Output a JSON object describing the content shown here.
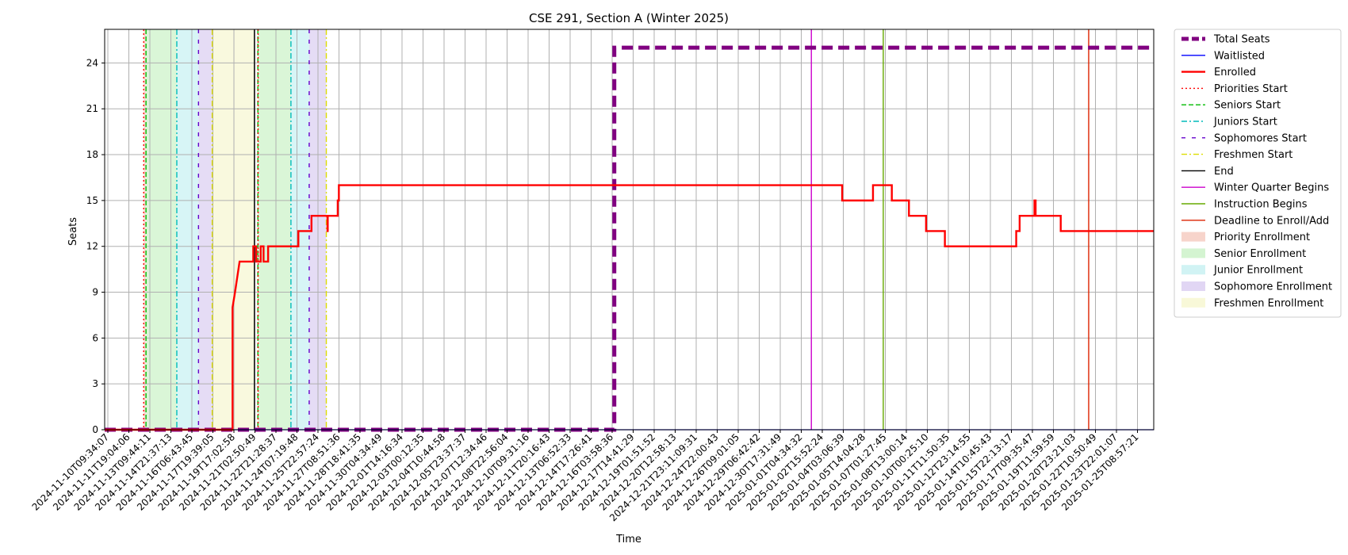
{
  "chart_data": {
    "type": "line",
    "title": "CSE 291, Section A (Winter 2025)",
    "xlabel": "Time",
    "ylabel": "Seats",
    "xlim": [
      "2024-11-10T09:34:07",
      "2025-01-25T23:59:59"
    ],
    "ylim": [
      0,
      26.2
    ],
    "grid": true,
    "legend_position": "outside-right-top",
    "y_ticks": [
      0,
      3,
      6,
      9,
      12,
      15,
      18,
      21,
      24
    ],
    "x_tick_labels": [
      "2024-11-10T09:34:07",
      "2024-11-11T19:04:06",
      "2024-11-13T09:44:11",
      "2024-11-14T21:37:13",
      "2024-11-16T06:43:45",
      "2024-11-17T19:39:05",
      "2024-11-19T17:02:58",
      "2024-11-21T02:50:49",
      "2024-11-22T21:28:37",
      "2024-11-24T07:19:48",
      "2024-11-25T22:57:24",
      "2024-11-27T08:51:36",
      "2024-11-28T18:41:35",
      "2024-11-30T04:34:49",
      "2024-12-01T14:16:34",
      "2024-12-03T00:12:35",
      "2024-12-04T10:44:58",
      "2024-12-05T23:37:37",
      "2024-12-07T12:34:46",
      "2024-12-08T22:56:04",
      "2024-12-10T09:31:16",
      "2024-12-11T20:16:43",
      "2024-12-13T06:52:33",
      "2024-12-14T17:26:41",
      "2024-12-16T03:58:36",
      "2024-12-17T14:41:29",
      "2024-12-19T01:51:52",
      "2024-12-20T12:58:13",
      "2024-12-21T23:11:09:31",
      "2024-12-24T22:00:43",
      "2024-12-26T09:01:05",
      "2024-12-29T06:42:42",
      "2024-12-30T17:31:49",
      "2025-01-01T04:34:32",
      "2025-01-02T15:52:24",
      "2025-01-04T03:06:39",
      "2025-01-05T14:04:28",
      "2025-01-07T01:27:45",
      "2025-01-08T13:00:14",
      "2025-01-10T00:25:10",
      "2025-01-11T11:50:35",
      "2025-01-12T23:14:55",
      "2025-01-14T10:45:43",
      "2025-01-15T22:13:17",
      "2025-01-17T09:35:47",
      "2025-01-19T11:59:59",
      "2025-01-20T23:21:03",
      "2025-01-22T10:50:49",
      "2025-01-23T22:01:07",
      "2025-01-25T08:57:21"
    ],
    "series": [
      {
        "name": "Total Seats",
        "color": "#800080",
        "style": "thick-dashed",
        "points": [
          [
            "2024-11-10T09:34:07",
            0
          ],
          [
            "2024-12-17T14:41:29",
            0
          ],
          [
            "2024-12-17T14:41:29",
            25
          ],
          [
            "2025-01-25T23:59:59",
            25
          ]
        ]
      },
      {
        "name": "Waitlisted",
        "color": "#0000ff",
        "style": "solid",
        "points": [
          [
            "2024-11-10T09:34:07",
            0
          ],
          [
            "2025-01-25T23:59:59",
            0
          ]
        ]
      },
      {
        "name": "Enrolled",
        "color": "#ff0000",
        "style": "thick-solid",
        "points": [
          [
            "2024-11-10T09:34:07",
            0
          ],
          [
            "2024-11-19T17:40:00",
            0
          ],
          [
            "2024-11-19T17:40:00",
            8
          ],
          [
            "2024-11-19T22:00:00",
            9
          ],
          [
            "2024-11-20T02:00:00",
            10
          ],
          [
            "2024-11-20T06:00:00",
            11
          ],
          [
            "2024-11-21T06:00:00",
            11
          ],
          [
            "2024-11-21T06:00:00",
            12
          ],
          [
            "2024-11-21T11:00:00",
            12
          ],
          [
            "2024-11-21T11:00:00",
            11
          ],
          [
            "2024-11-21T19:00:00",
            11
          ],
          [
            "2024-11-21T19:00:00",
            12
          ],
          [
            "2024-11-22T00:00:00",
            12
          ],
          [
            "2024-11-22T00:00:00",
            11
          ],
          [
            "2024-11-22T08:00:00",
            11
          ],
          [
            "2024-11-22T08:00:00",
            12
          ],
          [
            "2024-11-24T13:00:00",
            12
          ],
          [
            "2024-11-24T13:00:00",
            13
          ],
          [
            "2024-11-25T12:00:00",
            13
          ],
          [
            "2024-11-25T12:00:00",
            14
          ],
          [
            "2024-11-26T16:00:00",
            14
          ],
          [
            "2024-11-26T16:00:00",
            13
          ],
          [
            "2024-11-26T16:30:00",
            13
          ],
          [
            "2024-11-26T16:30:00",
            14
          ],
          [
            "2024-11-27T10:00:00",
            14
          ],
          [
            "2024-11-27T10:00:00",
            15
          ],
          [
            "2024-11-27T12:00:00",
            15
          ],
          [
            "2024-11-27T12:00:00",
            16
          ],
          [
            "2025-01-03T06:00:00",
            16
          ],
          [
            "2025-01-03T06:00:00",
            15
          ],
          [
            "2025-01-05T12:00:00",
            15
          ],
          [
            "2025-01-05T12:00:00",
            16
          ],
          [
            "2025-01-06T21:00:00",
            16
          ],
          [
            "2025-01-06T21:00:00",
            15
          ],
          [
            "2025-01-08T03:00:00",
            15
          ],
          [
            "2025-01-08T03:00:00",
            14
          ],
          [
            "2025-01-09T09:00:00",
            14
          ],
          [
            "2025-01-09T09:00:00",
            13
          ],
          [
            "2025-01-10T18:00:00",
            13
          ],
          [
            "2025-01-10T18:00:00",
            12
          ],
          [
            "2025-01-15T23:00:00",
            12
          ],
          [
            "2025-01-15T23:00:00",
            13
          ],
          [
            "2025-01-16T05:00:00",
            13
          ],
          [
            "2025-01-16T05:00:00",
            14
          ],
          [
            "2025-01-17T07:00:00",
            14
          ],
          [
            "2025-01-17T07:00:00",
            15
          ],
          [
            "2025-01-17T09:00:00",
            15
          ],
          [
            "2025-01-17T09:00:00",
            14
          ],
          [
            "2025-01-19T05:00:00",
            14
          ],
          [
            "2025-01-19T05:00:00",
            13
          ],
          [
            "2025-01-25T23:59:59",
            13
          ]
        ]
      }
    ],
    "vertical_lines": [
      {
        "name": "Priorities Start",
        "time": "2024-11-13T06:00:00",
        "color": "#ff0000",
        "style": "dotted"
      },
      {
        "name": "Seniors Start",
        "time": "2024-11-13T10:00:00",
        "color": "#00bb00",
        "style": "dashed"
      },
      {
        "name": "Juniors Start",
        "time": "2024-11-15T16:00:00",
        "color": "#00bbbb",
        "style": "dashdot"
      },
      {
        "name": "Sophomores Start",
        "time": "2024-11-17T06:00:00",
        "color": "#6600cc",
        "style": "loosedash"
      },
      {
        "name": "Freshmen Start",
        "time": "2024-11-18T06:00:00",
        "color": "#dddd00",
        "style": "dashdot"
      },
      {
        "name": "End",
        "time": "2024-11-21T08:00:00",
        "color": "#000000",
        "style": "solid"
      },
      {
        "name": "Seniors Start",
        "time": "2024-11-21T14:00:00",
        "color": "#00bb00",
        "style": "dashed",
        "legend": false
      },
      {
        "name": "Priorities Start",
        "time": "2024-11-21T14:30:00",
        "color": "#ff0000",
        "style": "dotted",
        "legend": false
      },
      {
        "name": "Juniors Start",
        "time": "2024-11-24T00:00:00",
        "color": "#00bbbb",
        "style": "dashdot",
        "legend": false
      },
      {
        "name": "Sophomores Start",
        "time": "2024-11-25T08:00:00",
        "color": "#6600cc",
        "style": "loosedash",
        "legend": false
      },
      {
        "name": "Freshmen Start",
        "time": "2024-11-26T14:00:00",
        "color": "#dddd00",
        "style": "dashdot",
        "legend": false
      },
      {
        "name": "Winter Quarter Begins",
        "time": "2025-01-01T00:00:00",
        "color": "#cc00cc",
        "style": "solid"
      },
      {
        "name": "Instruction Begins",
        "time": "2025-01-06T06:00:00",
        "color": "#66aa00",
        "style": "solid"
      },
      {
        "name": "Deadline to Enroll/Add",
        "time": "2025-01-21T06:00:00",
        "color": "#dd2200",
        "style": "solid"
      }
    ],
    "shaded_regions": [
      {
        "name": "Priority Enrollment",
        "start": "2024-11-13T06:00:00",
        "end": "2024-11-13T10:00:00",
        "color": "#f4c2b5"
      },
      {
        "name": "Senior Enrollment",
        "start": "2024-11-13T10:00:00",
        "end": "2024-11-15T16:00:00",
        "color": "#c2f0bd"
      },
      {
        "name": "Junior Enrollment",
        "start": "2024-11-15T16:00:00",
        "end": "2024-11-17T06:00:00",
        "color": "#bdeef0"
      },
      {
        "name": "Sophomore Enrollment",
        "start": "2024-11-17T06:00:00",
        "end": "2024-11-18T06:00:00",
        "color": "#d4c4ef"
      },
      {
        "name": "Freshmen Enrollment",
        "start": "2024-11-18T06:00:00",
        "end": "2024-11-21T08:00:00",
        "color": "#f5f5c8"
      },
      {
        "name": "Priority Enrollment",
        "start": "2024-11-21T14:00:00",
        "end": "2024-11-21T14:30:00",
        "color": "#f4c2b5",
        "legend": false
      },
      {
        "name": "Senior Enrollment",
        "start": "2024-11-21T14:30:00",
        "end": "2024-11-24T00:00:00",
        "color": "#c2f0bd",
        "legend": false
      },
      {
        "name": "Junior Enrollment",
        "start": "2024-11-24T00:00:00",
        "end": "2024-11-25T08:00:00",
        "color": "#bdeef0",
        "legend": false
      },
      {
        "name": "Sophomore Enrollment",
        "start": "2024-11-25T08:00:00",
        "end": "2024-11-26T14:00:00",
        "color": "#d4c4ef",
        "legend": false
      }
    ],
    "legend": [
      {
        "label": "Total Seats",
        "kind": "line",
        "color": "#800080",
        "style": "thick-dashed"
      },
      {
        "label": "Waitlisted",
        "kind": "line",
        "color": "#0000ff",
        "style": "solid"
      },
      {
        "label": "Enrolled",
        "kind": "line",
        "color": "#ff0000",
        "style": "thick-solid"
      },
      {
        "label": "Priorities Start",
        "kind": "line",
        "color": "#ff0000",
        "style": "dotted"
      },
      {
        "label": "Seniors Start",
        "kind": "line",
        "color": "#00bb00",
        "style": "dashed"
      },
      {
        "label": "Juniors Start",
        "kind": "line",
        "color": "#00bbbb",
        "style": "dashdot"
      },
      {
        "label": "Sophomores Start",
        "kind": "line",
        "color": "#6600cc",
        "style": "loosedash"
      },
      {
        "label": "Freshmen Start",
        "kind": "line",
        "color": "#dddd00",
        "style": "dashdot"
      },
      {
        "label": "End",
        "kind": "line",
        "color": "#000000",
        "style": "solid"
      },
      {
        "label": "Winter Quarter Begins",
        "kind": "line",
        "color": "#cc00cc",
        "style": "solid"
      },
      {
        "label": "Instruction Begins",
        "kind": "line",
        "color": "#66aa00",
        "style": "solid"
      },
      {
        "label": "Deadline to Enroll/Add",
        "kind": "line",
        "color": "#dd2200",
        "style": "solid"
      },
      {
        "label": "Priority Enrollment",
        "kind": "patch",
        "color": "#f4c2b5"
      },
      {
        "label": "Senior Enrollment",
        "kind": "patch",
        "color": "#c2f0bd"
      },
      {
        "label": "Junior Enrollment",
        "kind": "patch",
        "color": "#bdeef0"
      },
      {
        "label": "Sophomore Enrollment",
        "kind": "patch",
        "color": "#d4c4ef"
      },
      {
        "label": "Freshmen Enrollment",
        "kind": "patch",
        "color": "#f5f5c8"
      }
    ]
  }
}
